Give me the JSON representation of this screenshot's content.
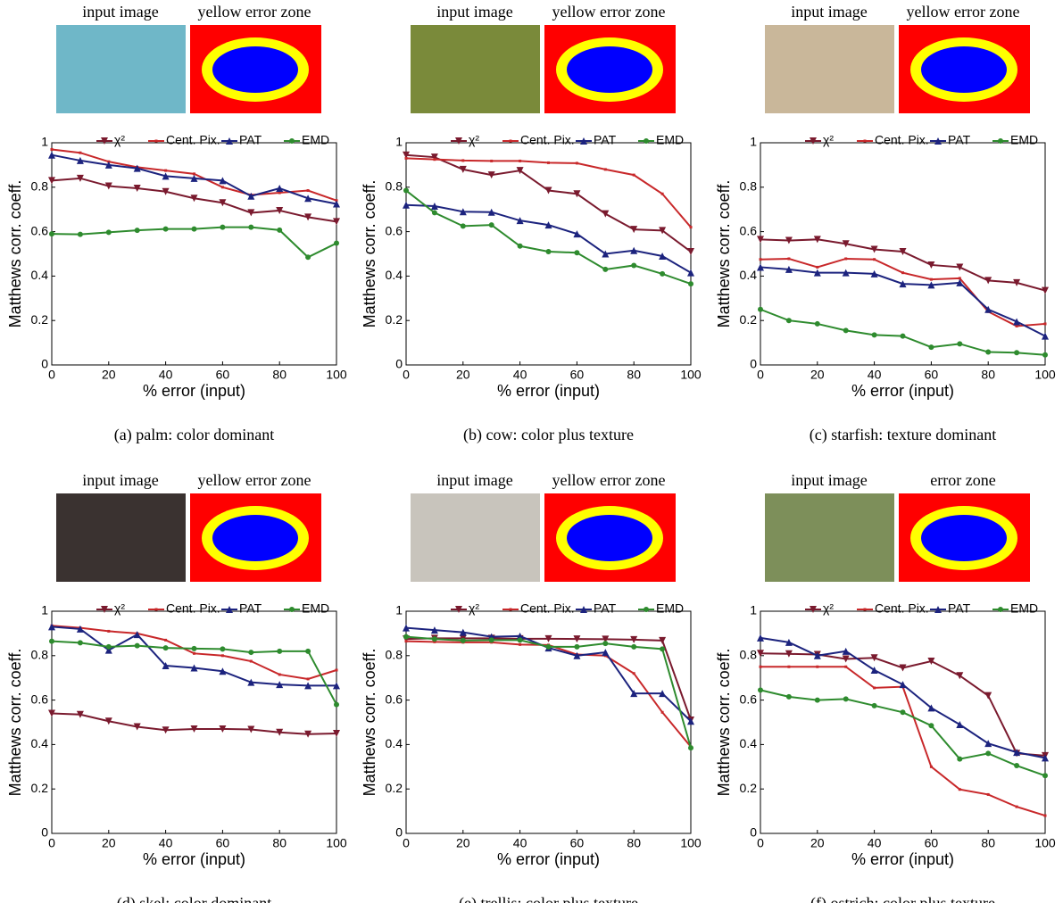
{
  "chart_data": [
    {
      "type": "line",
      "caption": "(a) palm: color dominant",
      "image_labels": [
        "input image",
        "yellow error zone"
      ],
      "xlabel": "% error (input)",
      "ylabel": "Matthews corr. coeff.",
      "x": [
        0,
        10,
        20,
        30,
        40,
        50,
        60,
        70,
        80,
        90,
        100
      ],
      "xlim": [
        0,
        100
      ],
      "xticks": [
        0,
        20,
        40,
        60,
        80,
        100
      ],
      "ylim": [
        0,
        1
      ],
      "yticks": [
        0,
        0.2,
        0.4,
        0.6,
        0.8,
        1
      ],
      "series": [
        {
          "name": "χ²",
          "color": "#7a1a2e",
          "marker": "v",
          "values": [
            0.83,
            0.84,
            0.805,
            0.795,
            0.78,
            0.75,
            0.73,
            0.685,
            0.695,
            0.665,
            0.645
          ]
        },
        {
          "name": "Cent. Pix.",
          "color": "#c8282a",
          "marker": "s",
          "values": [
            0.97,
            0.955,
            0.915,
            0.89,
            0.875,
            0.86,
            0.8,
            0.765,
            0.775,
            0.785,
            0.74
          ]
        },
        {
          "name": "PAT",
          "color": "#1c237e",
          "marker": "^",
          "values": [
            0.945,
            0.92,
            0.9,
            0.885,
            0.85,
            0.84,
            0.83,
            0.76,
            0.795,
            0.75,
            0.725
          ]
        },
        {
          "name": "EMD",
          "color": "#2e8b2e",
          "marker": "o",
          "values": [
            0.59,
            0.588,
            0.597,
            0.606,
            0.612,
            0.612,
            0.62,
            0.62,
            0.607,
            0.485,
            0.548
          ]
        }
      ]
    },
    {
      "type": "line",
      "caption": "(b) cow: color plus texture",
      "image_labels": [
        "input image",
        "yellow error zone"
      ],
      "xlabel": "% error (input)",
      "ylabel": "Matthews corr. coeff.",
      "x": [
        0,
        10,
        20,
        30,
        40,
        50,
        60,
        70,
        80,
        90,
        100
      ],
      "xlim": [
        0,
        100
      ],
      "xticks": [
        0,
        20,
        40,
        60,
        80,
        100
      ],
      "ylim": [
        0,
        1
      ],
      "yticks": [
        0,
        0.2,
        0.4,
        0.6,
        0.8,
        1
      ],
      "series": [
        {
          "name": "χ²",
          "color": "#7a1a2e",
          "marker": "v",
          "values": [
            0.945,
            0.935,
            0.88,
            0.855,
            0.875,
            0.785,
            0.77,
            0.68,
            0.61,
            0.605,
            0.51
          ]
        },
        {
          "name": "Cent. Pix.",
          "color": "#c8282a",
          "marker": "s",
          "values": [
            0.93,
            0.925,
            0.92,
            0.918,
            0.918,
            0.91,
            0.908,
            0.88,
            0.855,
            0.77,
            0.62
          ]
        },
        {
          "name": "PAT",
          "color": "#1c237e",
          "marker": "^",
          "values": [
            0.72,
            0.715,
            0.69,
            0.688,
            0.65,
            0.63,
            0.59,
            0.5,
            0.515,
            0.49,
            0.415
          ]
        },
        {
          "name": "EMD",
          "color": "#2e8b2e",
          "marker": "o",
          "values": [
            0.785,
            0.685,
            0.625,
            0.63,
            0.535,
            0.51,
            0.505,
            0.43,
            0.448,
            0.41,
            0.365
          ]
        }
      ]
    },
    {
      "type": "line",
      "caption": "(c) starfish: texture dominant",
      "image_labels": [
        "input image",
        "yellow error zone"
      ],
      "xlabel": "% error (input)",
      "ylabel": "Matthews corr. coeff.",
      "x": [
        0,
        10,
        20,
        30,
        40,
        50,
        60,
        70,
        80,
        90,
        100
      ],
      "xlim": [
        0,
        100
      ],
      "xticks": [
        0,
        20,
        40,
        60,
        80,
        100
      ],
      "ylim": [
        0,
        1
      ],
      "yticks": [
        0,
        0.2,
        0.4,
        0.6,
        0.8,
        1
      ],
      "series": [
        {
          "name": "χ²",
          "color": "#7a1a2e",
          "marker": "v",
          "values": [
            0.565,
            0.56,
            0.565,
            0.545,
            0.52,
            0.51,
            0.45,
            0.44,
            0.38,
            0.37,
            0.335
          ]
        },
        {
          "name": "Cent. Pix.",
          "color": "#c8282a",
          "marker": "s",
          "values": [
            0.475,
            0.478,
            0.44,
            0.478,
            0.475,
            0.415,
            0.385,
            0.39,
            0.24,
            0.175,
            0.185
          ]
        },
        {
          "name": "PAT",
          "color": "#1c237e",
          "marker": "^",
          "values": [
            0.44,
            0.43,
            0.415,
            0.415,
            0.41,
            0.365,
            0.36,
            0.37,
            0.25,
            0.195,
            0.13
          ]
        },
        {
          "name": "EMD",
          "color": "#2e8b2e",
          "marker": "o",
          "values": [
            0.25,
            0.2,
            0.185,
            0.155,
            0.135,
            0.13,
            0.08,
            0.095,
            0.058,
            0.055,
            0.045
          ]
        }
      ]
    },
    {
      "type": "line",
      "caption": "(d) skel: color dominant",
      "image_labels": [
        "input image",
        "yellow error zone"
      ],
      "xlabel": "% error (input)",
      "ylabel": "Matthews corr. coeff.",
      "x": [
        0,
        10,
        20,
        30,
        40,
        50,
        60,
        70,
        80,
        90,
        100
      ],
      "xlim": [
        0,
        100
      ],
      "xticks": [
        0,
        20,
        40,
        60,
        80,
        100
      ],
      "ylim": [
        0,
        1
      ],
      "yticks": [
        0,
        0.2,
        0.4,
        0.6,
        0.8,
        1
      ],
      "series": [
        {
          "name": "χ²",
          "color": "#7a1a2e",
          "marker": "v",
          "values": [
            0.54,
            0.535,
            0.505,
            0.48,
            0.465,
            0.47,
            0.47,
            0.468,
            0.455,
            0.447,
            0.45
          ]
        },
        {
          "name": "Cent. Pix.",
          "color": "#c8282a",
          "marker": "s",
          "values": [
            0.935,
            0.925,
            0.91,
            0.9,
            0.87,
            0.81,
            0.8,
            0.775,
            0.715,
            0.695,
            0.735
          ]
        },
        {
          "name": "PAT",
          "color": "#1c237e",
          "marker": "^",
          "values": [
            0.93,
            0.92,
            0.825,
            0.895,
            0.755,
            0.745,
            0.73,
            0.68,
            0.67,
            0.665,
            0.665
          ]
        },
        {
          "name": "EMD",
          "color": "#2e8b2e",
          "marker": "o",
          "values": [
            0.865,
            0.858,
            0.84,
            0.845,
            0.835,
            0.832,
            0.83,
            0.815,
            0.82,
            0.82,
            0.58
          ]
        }
      ]
    },
    {
      "type": "line",
      "caption": "(e) trellis: color plus texture",
      "image_labels": [
        "input image",
        "yellow error zone"
      ],
      "xlabel": "% error (input)",
      "ylabel": "Matthews corr. coeff.",
      "x": [
        0,
        10,
        20,
        30,
        40,
        50,
        60,
        70,
        80,
        90,
        100
      ],
      "xlim": [
        0,
        100
      ],
      "xticks": [
        0,
        20,
        40,
        60,
        80,
        100
      ],
      "ylim": [
        0,
        1
      ],
      "yticks": [
        0,
        0.2,
        0.4,
        0.6,
        0.8,
        1
      ],
      "series": [
        {
          "name": "χ²",
          "color": "#7a1a2e",
          "marker": "v",
          "values": [
            0.875,
            0.878,
            0.878,
            0.878,
            0.876,
            0.876,
            0.875,
            0.874,
            0.872,
            0.868,
            0.51
          ]
        },
        {
          "name": "Cent. Pix.",
          "color": "#c8282a",
          "marker": "s",
          "values": [
            0.865,
            0.862,
            0.86,
            0.86,
            0.85,
            0.848,
            0.805,
            0.8,
            0.72,
            0.545,
            0.39
          ]
        },
        {
          "name": "PAT",
          "color": "#1c237e",
          "marker": "^",
          "values": [
            0.925,
            0.915,
            0.905,
            0.885,
            0.888,
            0.835,
            0.8,
            0.815,
            0.63,
            0.63,
            0.505
          ]
        },
        {
          "name": "EMD",
          "color": "#2e8b2e",
          "marker": "o",
          "values": [
            0.885,
            0.875,
            0.868,
            0.87,
            0.87,
            0.84,
            0.84,
            0.855,
            0.84,
            0.83,
            0.385
          ]
        }
      ]
    },
    {
      "type": "line",
      "caption": "(f) ostrich: color plus texture",
      "image_labels": [
        "input image",
        "error zone"
      ],
      "xlabel": "% error (input)",
      "ylabel": "Matthews corr. coeff.",
      "x": [
        0,
        10,
        20,
        30,
        40,
        50,
        60,
        70,
        80,
        90,
        100
      ],
      "xlim": [
        0,
        100
      ],
      "xticks": [
        0,
        20,
        40,
        60,
        80,
        100
      ],
      "ylim": [
        0,
        1
      ],
      "yticks": [
        0,
        0.2,
        0.4,
        0.6,
        0.8,
        1
      ],
      "series": [
        {
          "name": "χ²",
          "color": "#7a1a2e",
          "marker": "v",
          "values": [
            0.81,
            0.808,
            0.805,
            0.785,
            0.79,
            0.745,
            0.775,
            0.71,
            0.62,
            0.36,
            0.35
          ]
        },
        {
          "name": "Cent. Pix.",
          "color": "#c8282a",
          "marker": "s",
          "values": [
            0.75,
            0.75,
            0.75,
            0.75,
            0.655,
            0.66,
            0.3,
            0.198,
            0.175,
            0.12,
            0.08
          ]
        },
        {
          "name": "PAT",
          "color": "#1c237e",
          "marker": "^",
          "values": [
            0.88,
            0.86,
            0.8,
            0.82,
            0.735,
            0.67,
            0.565,
            0.49,
            0.405,
            0.365,
            0.34
          ]
        },
        {
          "name": "EMD",
          "color": "#2e8b2e",
          "marker": "o",
          "values": [
            0.645,
            0.615,
            0.6,
            0.605,
            0.575,
            0.545,
            0.485,
            0.335,
            0.36,
            0.305,
            0.26
          ]
        }
      ]
    }
  ]
}
